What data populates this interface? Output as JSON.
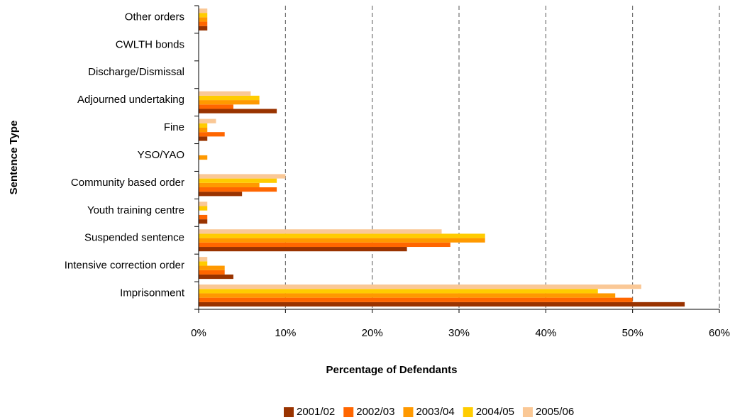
{
  "chart_data": {
    "type": "hbar",
    "xlabel": "Percentage of Defendants",
    "ylabel": "Sentence Type",
    "categories": [
      "Other orders",
      "CWLTH bonds",
      "Discharge/Dismissal",
      "Adjourned undertaking",
      "Fine",
      "YSO/YAO",
      "Community based order",
      "Youth training centre",
      "Suspended sentence",
      "Intensive correction order",
      "Imprisonment"
    ],
    "series": [
      {
        "name": "2001/02",
        "color": "#993300",
        "values": [
          1,
          0,
          0,
          9,
          1,
          0,
          5,
          1,
          24,
          4,
          56
        ]
      },
      {
        "name": "2002/03",
        "color": "#ff6600",
        "values": [
          1,
          0,
          0,
          4,
          3,
          0,
          9,
          1,
          29,
          3,
          50
        ]
      },
      {
        "name": "2003/04",
        "color": "#ff9900",
        "values": [
          1,
          0,
          0,
          7,
          1,
          1,
          7,
          0,
          33,
          3,
          48
        ]
      },
      {
        "name": "2004/05",
        "color": "#ffcc00",
        "values": [
          1,
          0,
          0,
          7,
          1,
          0,
          9,
          1,
          33,
          1,
          46
        ]
      },
      {
        "name": "2005/06",
        "color": "#fac896",
        "values": [
          1,
          0,
          0,
          6,
          2,
          0,
          10,
          1,
          28,
          1,
          51
        ]
      }
    ],
    "xlim": [
      0,
      60
    ],
    "xticks": [
      {
        "value": 0,
        "label": "0%"
      },
      {
        "value": 10,
        "label": "10%"
      },
      {
        "value": 20,
        "label": "20%"
      },
      {
        "value": 30,
        "label": "30%"
      },
      {
        "value": 40,
        "label": "40%"
      },
      {
        "value": 50,
        "label": "50%"
      },
      {
        "value": 60,
        "label": "60%"
      }
    ],
    "grid": true,
    "legend": "bottom"
  }
}
